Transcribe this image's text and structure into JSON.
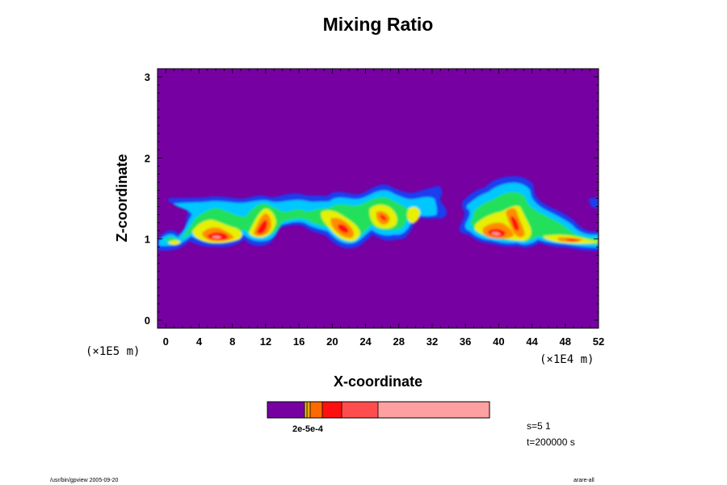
{
  "chart_data": {
    "type": "heatmap",
    "title": "Mixing Ratio",
    "xlabel": "X-coordinate",
    "ylabel": "Z-coordinate",
    "x_multiplier": "(×1E5 m)",
    "x_multiplier_right": "(×1E4 m)",
    "x_ticks": [
      "0",
      "4",
      "8",
      "12",
      "16",
      "20",
      "24",
      "28",
      "32",
      "36",
      "40",
      "44",
      "48",
      "52"
    ],
    "y_ticks": [
      "0",
      "1",
      "2",
      "3"
    ],
    "xlim": [
      -1,
      52
    ],
    "ylim": [
      -0.1,
      3.1
    ],
    "background_color": "#7700a2",
    "colorbar": {
      "tick_label": "2e-5e-4",
      "colors": [
        "#7700a2",
        "#e8a800",
        "#ff6a00",
        "#ff1010",
        "#ff4d4d",
        "#ffa0a0"
      ]
    },
    "scale_text": "s=5 1",
    "time_text": "t=200000 s"
  },
  "footer": {
    "left": "/usr/bin/gpview 2005-09-20",
    "right": "arare-all"
  }
}
